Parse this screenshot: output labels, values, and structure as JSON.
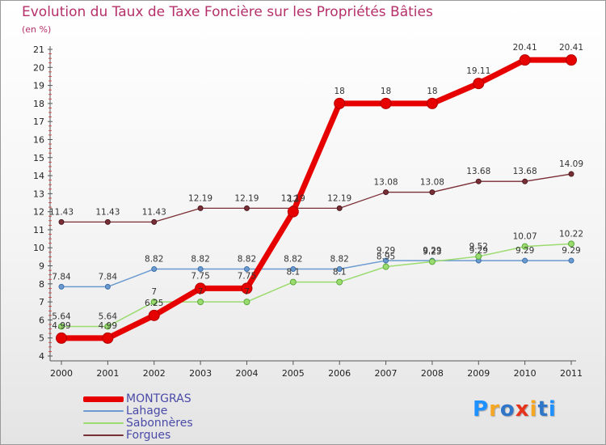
{
  "title": "Evolution du Taux de Taxe Foncière sur les Propriétés Bâties",
  "unit": "(en %)",
  "logo": {
    "text": "Proxiti",
    "colors": [
      "#1e90ff",
      "#f5a623",
      "#2f75c8",
      "#e8331c",
      "#f5a623",
      "#2f75c8",
      "#1e90ff"
    ]
  },
  "chart_data": {
    "type": "line",
    "title": "Evolution du Taux de Taxe Foncière sur les Propriétés Bâties",
    "ylabel": "(en %)",
    "xlabel": "",
    "ylim": [
      4,
      21
    ],
    "yticks": [
      "4",
      "5",
      "6",
      "7",
      "8",
      "9",
      "10",
      "11",
      "12",
      "13",
      "14",
      "15",
      "16",
      "17",
      "18",
      "19",
      "20",
      "21"
    ],
    "categories": [
      "2000",
      "2001",
      "2002",
      "2003",
      "2004",
      "2005",
      "2006",
      "2007",
      "2008",
      "2009",
      "2010",
      "2011"
    ],
    "series": [
      {
        "name": "Forgues",
        "color": "#7a2e35",
        "values": [
          11.43,
          11.43,
          11.43,
          12.19,
          12.19,
          12.19,
          12.19,
          13.08,
          13.08,
          13.68,
          13.68,
          14.09
        ],
        "labels": [
          "11.43",
          "11.43",
          "11.43",
          "12.19",
          "12.19",
          "12.19",
          "12.19",
          "13.08",
          "13.08",
          "13.68",
          "13.68",
          "14.09"
        ]
      },
      {
        "name": "Lahage",
        "color": "#6a9ad0",
        "values": [
          7.84,
          7.84,
          8.82,
          8.82,
          8.82,
          8.82,
          8.82,
          9.29,
          9.29,
          9.29,
          9.29,
          9.29
        ],
        "labels": [
          "7.84",
          "7.84",
          "8.82",
          "8.82",
          "8.82",
          "8.82",
          "8.82",
          "9.29",
          "9.29",
          "9.29",
          "9.29",
          "9.29"
        ]
      },
      {
        "name": "Sabonnères",
        "color": "#9bdb6f",
        "values": [
          5.64,
          5.64,
          7.0,
          7.0,
          7.0,
          8.1,
          8.1,
          8.95,
          9.23,
          9.52,
          10.07,
          10.22
        ],
        "labels": [
          "5.64",
          "5.64",
          "7",
          "7",
          "7",
          "8.1",
          "8.1",
          "8.95",
          "9.23",
          "9.52",
          "10.07",
          "10.22"
        ]
      },
      {
        "name": "MONTGRAS",
        "color": "#e60000",
        "values": [
          4.99,
          4.99,
          6.25,
          7.75,
          7.75,
          12.0,
          18,
          18,
          18,
          19.11,
          20.41,
          20.41
        ],
        "labels": [
          "4.99",
          "4.99",
          "6.25",
          "7.75",
          "7.75",
          "12",
          "18",
          "18",
          "18",
          "19.11",
          "20.41",
          "20.41"
        ]
      }
    ],
    "legend_order": [
      "MONTGRAS",
      "Lahage",
      "Sabonnères",
      "Forgues"
    ]
  }
}
